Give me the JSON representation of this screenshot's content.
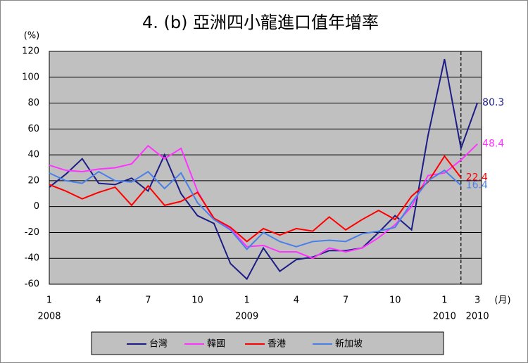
{
  "chart_data": {
    "type": "line",
    "title": "4. (b)  亞洲四小龍進口值年增率",
    "y_label": "(%)",
    "x_label": "(月)",
    "categories": [
      "1",
      null,
      null,
      "4",
      null,
      null,
      "7",
      null,
      null,
      "10",
      null,
      null,
      "1",
      null,
      null,
      "4",
      null,
      null,
      "7",
      null,
      null,
      "10",
      null,
      null,
      "1",
      null,
      "3"
    ],
    "year_labels": [
      "2008",
      null,
      null,
      null,
      null,
      null,
      null,
      null,
      null,
      null,
      null,
      null,
      "2009",
      null,
      null,
      null,
      null,
      null,
      null,
      null,
      null,
      null,
      null,
      null,
      "2010",
      null,
      "2010"
    ],
    "ylim": [
      -60,
      120
    ],
    "yticks": [
      -60,
      -40,
      -20,
      0,
      20,
      40,
      60,
      80,
      100,
      120
    ],
    "grid": true,
    "divider_index": 25,
    "legend": "bottom",
    "series": [
      {
        "name": "台灣",
        "color": "#1c1c86",
        "values": [
          15,
          25,
          37,
          18,
          17,
          22,
          12,
          40,
          10,
          -7,
          -13,
          -44,
          -56,
          -32,
          -50,
          -41,
          -39,
          -34,
          -34,
          -32,
          -20,
          -7,
          -18,
          55,
          114,
          45,
          80.3
        ]
      },
      {
        "name": "韓國",
        "color": "#ff33ff",
        "values": [
          32,
          28,
          27,
          29,
          30,
          33,
          47,
          37,
          45,
          12,
          -10,
          -17,
          -31,
          -30,
          -35,
          -35,
          -40,
          -32,
          -35,
          -32,
          -24,
          -14,
          0,
          24,
          26,
          36,
          48.4
        ]
      },
      {
        "name": "香港",
        "color": "#ff0000",
        "values": [
          17,
          12,
          6,
          11,
          15,
          1,
          16,
          1,
          4,
          11,
          -9,
          -16,
          -27,
          -17,
          -22,
          -17,
          -19,
          -8,
          -18,
          -10,
          -3,
          -10,
          8,
          19,
          39,
          22.4,
          null
        ]
      },
      {
        "name": "新加坡",
        "color": "#4a7fe8",
        "values": [
          26,
          20,
          18,
          27,
          20,
          19,
          27,
          14,
          26,
          3,
          -10,
          -18,
          -33,
          -20,
          -27,
          -31,
          -27,
          -26,
          -27,
          -21,
          -19,
          -16,
          3,
          20,
          28,
          16.4,
          null
        ]
      }
    ]
  }
}
